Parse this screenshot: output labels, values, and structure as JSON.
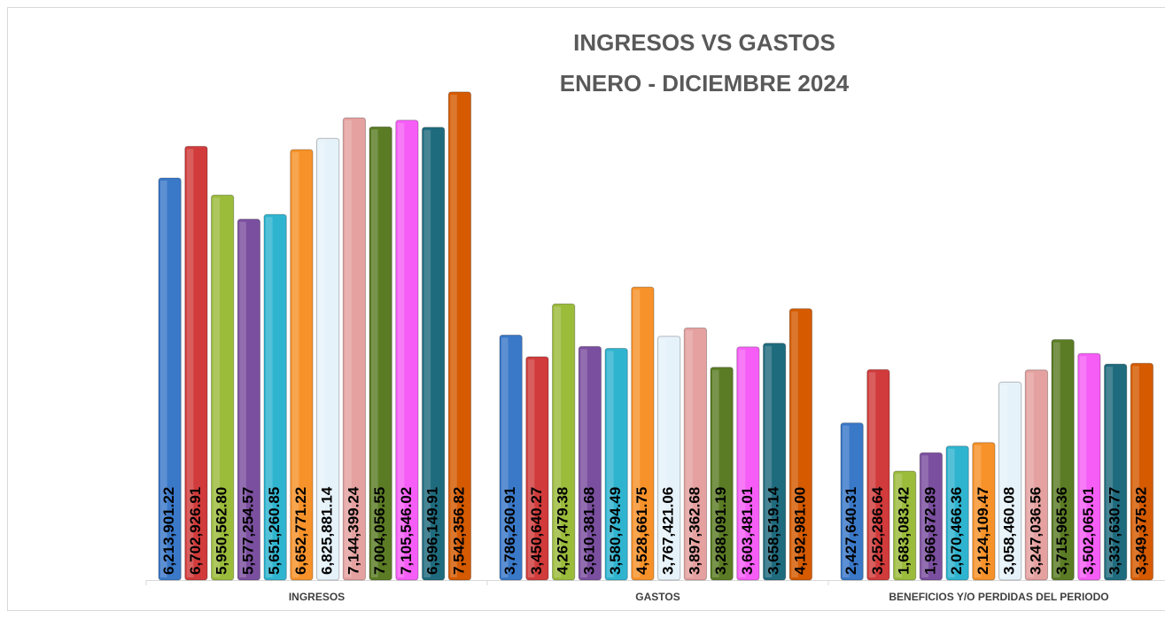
{
  "chart_data": {
    "type": "bar",
    "title": [
      "INGRESOS VS GASTOS",
      "ENERO - DICIEMBRE 2024"
    ],
    "categories": [
      "INGRESOS",
      "GASTOS",
      "BENEFICIOS Y/O PERDIDAS DEL PERIODO"
    ],
    "ylim": [
      0,
      8800000
    ],
    "series": [
      {
        "color": "#3a78c8",
        "values": [
          6213901.22,
          3786260.91,
          2427640.31
        ],
        "value_labels": [
          "6,213,901.22",
          "3,786,260.91",
          "2,427,640.31"
        ]
      },
      {
        "color": "#d13b3b",
        "values": [
          6702926.91,
          3450640.27,
          3252286.64
        ],
        "value_labels": [
          "6,702,926.91",
          "3,450,640.27",
          "3,252,286.64"
        ]
      },
      {
        "color": "#9bbb3b",
        "values": [
          5950562.8,
          4267479.38,
          1683083.42
        ],
        "value_labels": [
          "5,950,562.80",
          "4,267,479.38",
          "1,683,083.42"
        ]
      },
      {
        "color": "#7b4f9f",
        "values": [
          5577254.57,
          3610381.68,
          1966872.89
        ],
        "value_labels": [
          "5,577,254.57",
          "3,610,381.68",
          "1,966,872.89"
        ]
      },
      {
        "color": "#2fb4d0",
        "values": [
          5651260.85,
          3580794.49,
          2070466.36
        ],
        "value_labels": [
          "5,651,260.85",
          "3,580,794.49",
          "2,070,466.36"
        ]
      },
      {
        "color": "#f7922a",
        "values": [
          6652771.22,
          4528661.75,
          2124109.47
        ],
        "value_labels": [
          "6,652,771.22",
          "4,528,661.75",
          "2,124,109.47"
        ]
      },
      {
        "color": "#e6f2fa",
        "values": [
          6825881.14,
          3767421.06,
          3058460.08
        ],
        "value_labels": [
          "6,825,881.14",
          "3,767,421.06",
          "3,058,460.08"
        ]
      },
      {
        "color": "#e5a1a0",
        "values": [
          7144399.24,
          3897362.68,
          3247036.56
        ],
        "value_labels": [
          "7,144,399.24",
          "3,897,362.68",
          "3,247,036.56"
        ]
      },
      {
        "color": "#5b7c24",
        "values": [
          7004056.55,
          3288091.19,
          3715965.36
        ],
        "value_labels": [
          "7,004,056.55",
          "3,288,091.19",
          "3,715,965.36"
        ]
      },
      {
        "color": "#f65df6",
        "values": [
          7105546.02,
          3603481.01,
          3502065.01
        ],
        "value_labels": [
          "7,105,546.02",
          "3,603,481.01",
          "3,502,065.01"
        ]
      },
      {
        "color": "#1f6b7e",
        "values": [
          6996149.91,
          3658519.14,
          3337630.77
        ],
        "value_labels": [
          "6,996,149.91",
          "3,658,519.14",
          "3,337,630.77"
        ]
      },
      {
        "color": "#d55a00",
        "values": [
          7542356.82,
          4192981.0,
          3349375.82
        ],
        "value_labels": [
          "7,542,356.82",
          "4,192,981.00",
          "3,349,375.82"
        ]
      }
    ]
  }
}
